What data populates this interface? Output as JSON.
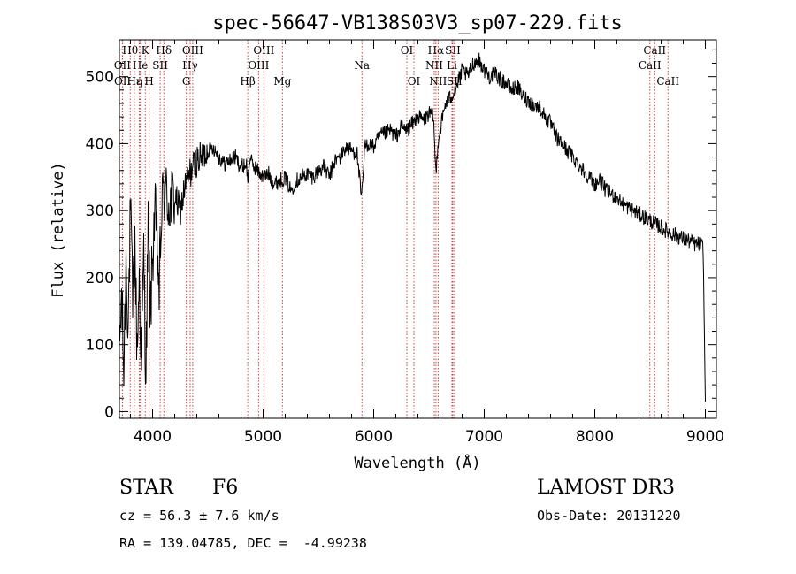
{
  "chart_data": {
    "type": "line",
    "title": "spec-56647-VB138S03V3_sp07-229.fits",
    "xlabel": "Wavelength (Å)",
    "ylabel": "Flux (relative)",
    "xlim": [
      3700,
      9100
    ],
    "ylim": [
      -10,
      555
    ],
    "xticks": [
      4000,
      5000,
      6000,
      7000,
      8000,
      9000
    ],
    "yticks": [
      0,
      100,
      200,
      300,
      400,
      500
    ],
    "grid": false,
    "series": [
      {
        "name": "flux",
        "x": [
          3700,
          3720,
          3740,
          3760,
          3780,
          3800,
          3820,
          3840,
          3860,
          3880,
          3900,
          3920,
          3940,
          3960,
          3980,
          4000,
          4020,
          4040,
          4060,
          4080,
          4100,
          4150,
          4200,
          4250,
          4300,
          4350,
          4400,
          4450,
          4500,
          4550,
          4600,
          4650,
          4700,
          4750,
          4800,
          4850,
          4860,
          4880,
          4900,
          4950,
          5000,
          5050,
          5100,
          5150,
          5200,
          5250,
          5300,
          5350,
          5400,
          5450,
          5500,
          5550,
          5600,
          5650,
          5700,
          5750,
          5800,
          5850,
          5890,
          5920,
          5950,
          6000,
          6050,
          6100,
          6150,
          6200,
          6250,
          6300,
          6350,
          6400,
          6450,
          6500,
          6540,
          6563,
          6580,
          6600,
          6650,
          6700,
          6750,
          6800,
          6850,
          6900,
          6950,
          7000,
          7050,
          7100,
          7150,
          7200,
          7250,
          7300,
          7350,
          7400,
          7450,
          7500,
          7550,
          7600,
          7650,
          7700,
          7750,
          7800,
          7850,
          7900,
          7950,
          8000,
          8050,
          8100,
          8150,
          8200,
          8250,
          8300,
          8350,
          8400,
          8450,
          8500,
          8550,
          8600,
          8650,
          8700,
          8750,
          8800,
          8850,
          8900,
          8950,
          8980,
          9000
        ],
        "values": [
          90,
          170,
          60,
          230,
          130,
          300,
          160,
          250,
          90,
          200,
          70,
          240,
          50,
          280,
          140,
          230,
          300,
          250,
          180,
          290,
          330,
          310,
          320,
          300,
          340,
          360,
          375,
          380,
          390,
          395,
          380,
          370,
          375,
          380,
          365,
          370,
          340,
          380,
          370,
          360,
          350,
          355,
          340,
          345,
          350,
          330,
          345,
          350,
          355,
          350,
          360,
          365,
          350,
          375,
          380,
          395,
          390,
          385,
          315,
          395,
          400,
          395,
          410,
          415,
          420,
          410,
          425,
          420,
          430,
          440,
          435,
          445,
          440,
          355,
          400,
          420,
          460,
          470,
          485,
          510,
          500,
          520,
          525,
          510,
          500,
          505,
          495,
          490,
          480,
          485,
          470,
          465,
          455,
          455,
          440,
          430,
          410,
          400,
          390,
          380,
          370,
          360,
          350,
          340,
          345,
          330,
          325,
          320,
          310,
          305,
          300,
          295,
          290,
          285,
          280,
          275,
          270,
          265,
          262,
          258,
          255,
          250,
          250,
          245,
          15
        ]
      }
    ],
    "emission_lines": [
      {
        "label": "Hθ",
        "x": 3798,
        "row": 0
      },
      {
        "label": "OII",
        "x": 3727,
        "row": 1
      },
      {
        "label": "OII",
        "x": 3729,
        "row": 2
      },
      {
        "label": "Hε",
        "x": 3835,
        "row": 2
      },
      {
        "label": "K",
        "x": 3934,
        "row": 0
      },
      {
        "label": "He",
        "x": 3889,
        "row": 1
      },
      {
        "label": "η",
        "x": 3880,
        "row": 2
      },
      {
        "label": "SII",
        "x": 4069,
        "row": 1
      },
      {
        "label": "H",
        "x": 3969,
        "row": 2
      },
      {
        "label": "Hδ",
        "x": 4102,
        "row": 0
      },
      {
        "label": "OIII",
        "x": 4363,
        "row": 0
      },
      {
        "label": "Hγ",
        "x": 4340,
        "row": 1
      },
      {
        "label": "G",
        "x": 4305,
        "row": 2
      },
      {
        "label": "Hβ",
        "x": 4861,
        "row": 2
      },
      {
        "label": "OIII",
        "x": 5007,
        "row": 0
      },
      {
        "label": "OIII",
        "x": 4959,
        "row": 1
      },
      {
        "label": "Mg",
        "x": 5175,
        "row": 2
      },
      {
        "label": "Na",
        "x": 5894,
        "row": 1
      },
      {
        "label": "OI",
        "x": 6300,
        "row": 0
      },
      {
        "label": "OI",
        "x": 6364,
        "row": 2
      },
      {
        "label": "Hα",
        "x": 6563,
        "row": 0
      },
      {
        "label": "SII",
        "x": 6716,
        "row": 0
      },
      {
        "label": "NII",
        "x": 6548,
        "row": 1
      },
      {
        "label": "Li",
        "x": 6708,
        "row": 1
      },
      {
        "label": "NII",
        "x": 6583,
        "row": 2
      },
      {
        "label": "SII",
        "x": 6731,
        "row": 2
      },
      {
        "label": "CaII",
        "x": 8542,
        "row": 0
      },
      {
        "label": "CaII",
        "x": 8498,
        "row": 1
      },
      {
        "label": "CaII",
        "x": 8662,
        "row": 2
      }
    ]
  },
  "info": {
    "class_label": "STAR",
    "subclass": "F6",
    "survey": "LAMOST DR3",
    "cz": "cz = 56.3 ± 7.6 km/s",
    "obs_date": "Obs-Date: 20131220",
    "coords": "RA = 139.04785, DEC =  -4.99238"
  },
  "colors": {
    "line_marker": "#d04040",
    "spectrum": "#000000"
  }
}
